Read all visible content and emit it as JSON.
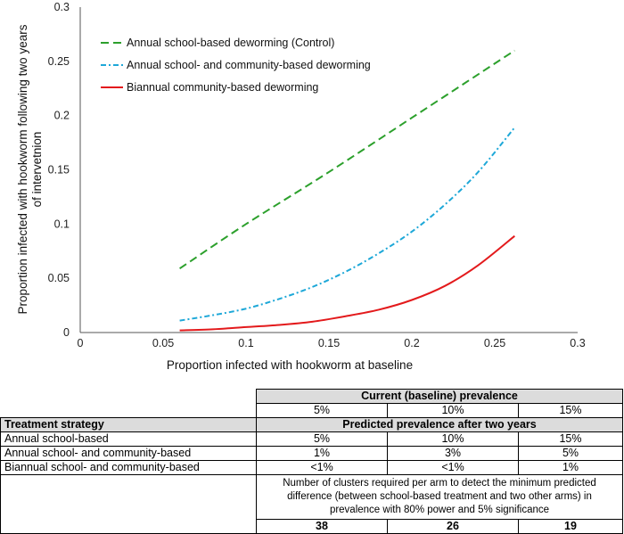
{
  "chart_data": {
    "type": "line",
    "xlabel": "Proportion infected with hookworm at baseline",
    "ylabel": "Proportion infected with hookworm following two years of intervetnion",
    "xlim": [
      0,
      0.3
    ],
    "ylim": [
      0,
      0.3
    ],
    "x_ticks": [
      "0",
      "0.05",
      "0.1",
      "0.15",
      "0.2",
      "0.25",
      "0.3"
    ],
    "y_ticks": [
      "0",
      "0.05",
      "0.1",
      "0.15",
      "0.2",
      "0.25",
      "0.3"
    ],
    "legend_position": "top-left",
    "series": [
      {
        "name": "Annual school-based deworming (Control)",
        "color": "#2ca02c",
        "style": "long-dash",
        "x": [
          0.06,
          0.1,
          0.15,
          0.2,
          0.25,
          0.262
        ],
        "y": [
          0.059,
          0.1,
          0.148,
          0.198,
          0.248,
          0.26
        ]
      },
      {
        "name": "Annual school- and community-based deworming",
        "color": "#1ea8d8",
        "style": "dash-dot",
        "x": [
          0.06,
          0.08,
          0.1,
          0.12,
          0.14,
          0.16,
          0.18,
          0.2,
          0.22,
          0.24,
          0.262
        ],
        "y": [
          0.011,
          0.016,
          0.022,
          0.031,
          0.042,
          0.056,
          0.073,
          0.093,
          0.118,
          0.148,
          0.189
        ]
      },
      {
        "name": "Biannual community-based deworming",
        "color": "#e31a1c",
        "style": "solid",
        "x": [
          0.06,
          0.08,
          0.1,
          0.12,
          0.14,
          0.16,
          0.18,
          0.2,
          0.22,
          0.24,
          0.262
        ],
        "y": [
          0.002,
          0.003,
          0.005,
          0.007,
          0.01,
          0.015,
          0.021,
          0.03,
          0.043,
          0.062,
          0.089
        ]
      }
    ]
  },
  "table": {
    "baseline_header": "Current (baseline) prevalence",
    "baseline_values": [
      "5%",
      "10%",
      "15%"
    ],
    "strategy_header": "Treatment strategy",
    "predicted_header": "Predicted prevalence after two years",
    "rows": [
      {
        "label": "Annual school-based",
        "values": [
          "5%",
          "10%",
          "15%"
        ]
      },
      {
        "label": "Annual school- and community-based",
        "values": [
          "1%",
          "3%",
          "5%"
        ]
      },
      {
        "label": "Biannual school- and community-based",
        "values": [
          "<1%",
          "<1%",
          "1%"
        ]
      }
    ],
    "clusters_note": "Number of clusters required per arm to detect the minimum predicted difference (between school-based treatment and two other arms) in prevalence with 80% power and 5% significance",
    "clusters_values": [
      "38",
      "26",
      "19"
    ]
  }
}
